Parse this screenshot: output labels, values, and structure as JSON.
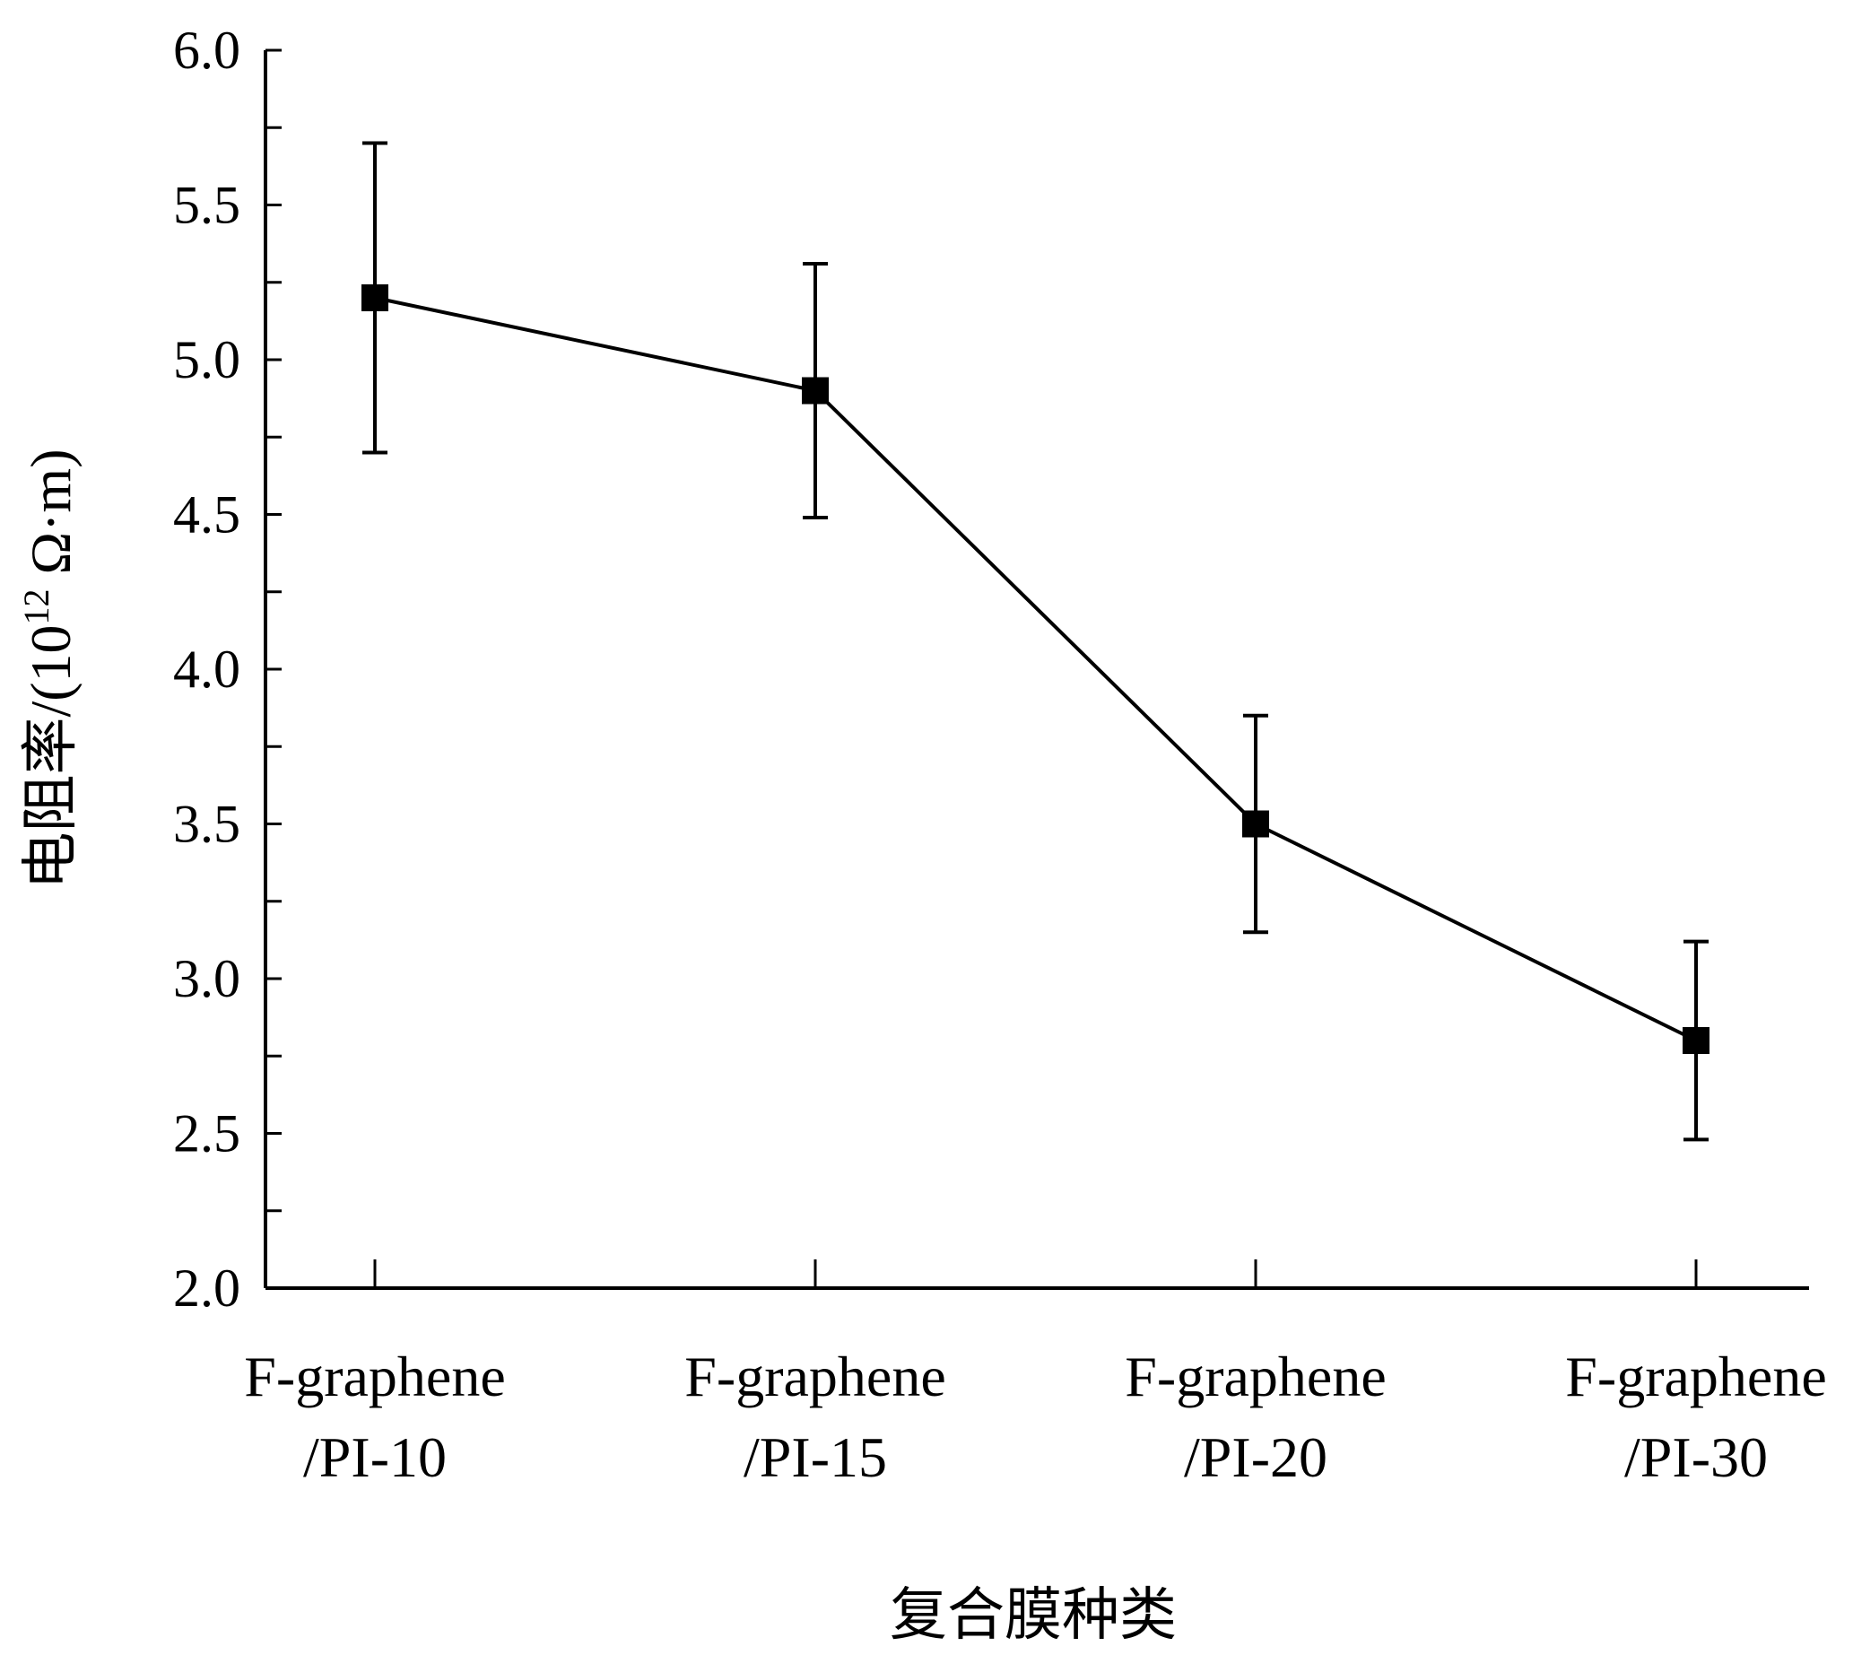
{
  "chart_data": {
    "type": "line",
    "categories": [
      [
        "F-graphene",
        "/PI-10"
      ],
      [
        "F-graphene",
        "/PI-15"
      ],
      [
        "F-graphene",
        "/PI-20"
      ],
      [
        "F-graphene",
        "/PI-30"
      ]
    ],
    "series": [
      {
        "values": [
          5.2,
          4.9,
          3.5,
          2.8
        ],
        "error_low": [
          4.7,
          4.49,
          3.15,
          2.48
        ],
        "error_high": [
          5.7,
          5.31,
          3.85,
          3.12
        ],
        "marker": "square",
        "color": "#000000"
      }
    ],
    "xlabel": "复合膜种类",
    "ylabel": {
      "prefix": "电阻率/(10",
      "superscript": "12",
      "suffix": " Ω·m)"
    },
    "ylim": [
      2.0,
      6.0
    ],
    "yticks": [
      "2.0",
      "2.5",
      "3.0",
      "3.5",
      "4.0",
      "4.5",
      "5.0",
      "5.5",
      "6.0"
    ],
    "y_minor_step": 0.25,
    "grid": false,
    "legend": "none"
  }
}
